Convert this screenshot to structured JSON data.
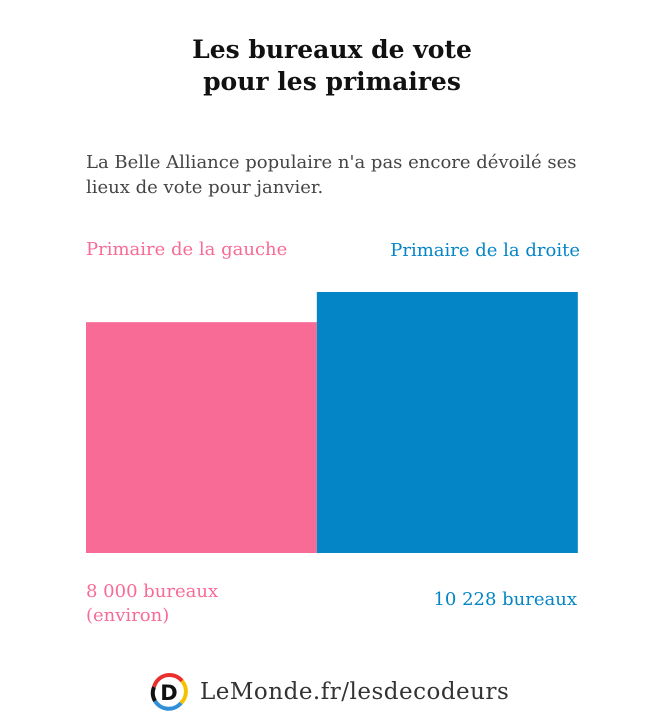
{
  "title_line1": "Les bureaux de vote",
  "title_line2": "pour les primaires",
  "subtitle": "La Belle Alliance populaire n'a pas encore dévoilé ses lieux de vote pour janvier.",
  "footer": {
    "text": "LeMonde.fr/lesdecodeurs",
    "logo_letter": "D"
  },
  "chart_data": {
    "type": "bar",
    "encoding": "square area proportional to value",
    "categories": [
      "Primaire de la gauche",
      "Primaire de la droite"
    ],
    "values": [
      8000,
      10228
    ],
    "value_labels": [
      "8 000 bureaux",
      "10 228 bureaux"
    ],
    "value_notes": [
      "(environ)",
      ""
    ],
    "colors": [
      "#f86b96",
      "#0485c6"
    ]
  }
}
